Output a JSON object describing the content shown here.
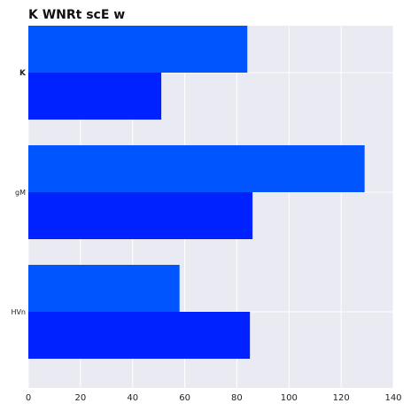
{
  "chart_data": {
    "type": "bar",
    "orientation": "horizontal",
    "title": "K WNRt scE w",
    "xlabel": "",
    "ylabel": "",
    "categories": [
      "K",
      "gM",
      "HVn"
    ],
    "series": [
      {
        "values": [
          84,
          129,
          58
        ],
        "color": "#0055ff"
      },
      {
        "values": [
          51,
          86,
          85
        ],
        "color": "#0022ff"
      }
    ],
    "xlim": [
      0,
      140
    ],
    "xticks": [
      "0",
      "20",
      "40",
      "60",
      "80",
      "100",
      "120",
      "140"
    ],
    "grid": true,
    "legend": "none"
  }
}
